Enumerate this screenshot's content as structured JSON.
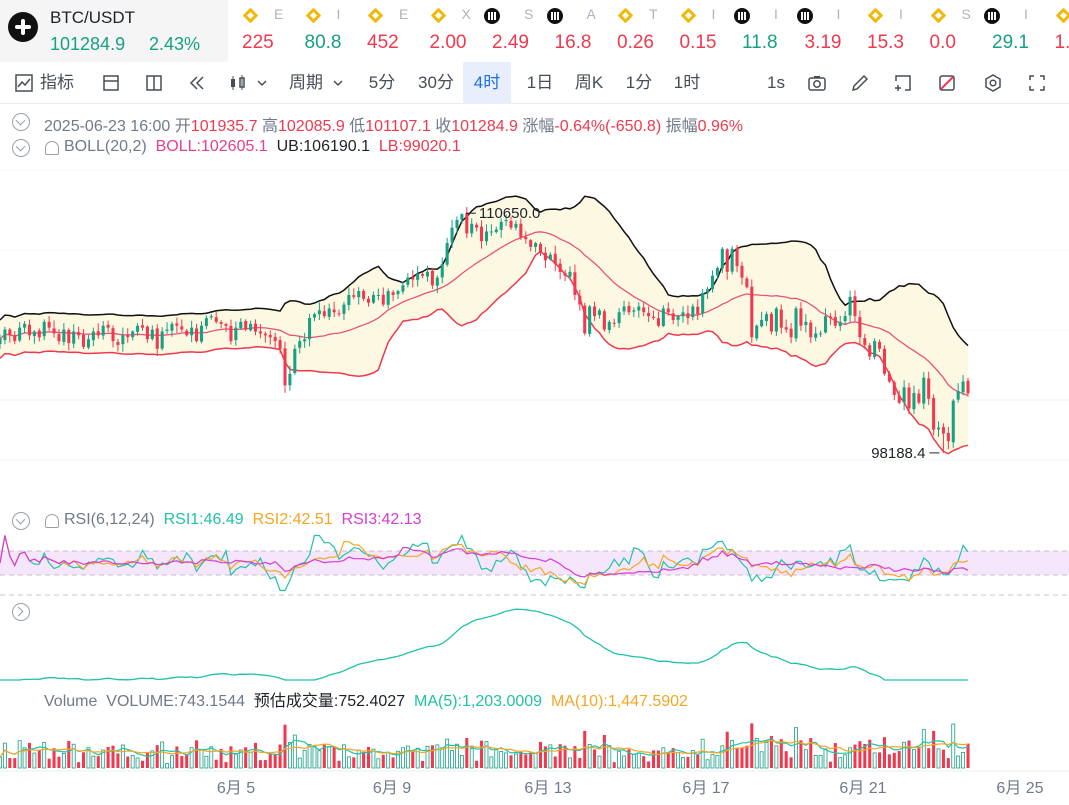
{
  "header": {
    "pair": "BTC/USDT",
    "price": "101284.9",
    "change": "2.43%",
    "tickers": [
      {
        "icon": "binance-icon",
        "sub": "E",
        "value": "225",
        "color": "#f0394e"
      },
      {
        "icon": "binance-icon",
        "sub": "I",
        "value": "80.8",
        "color": "#16a085"
      },
      {
        "icon": "binance-icon",
        "sub": "E",
        "value": "452",
        "color": "#f0394e"
      },
      {
        "icon": "binance-icon",
        "sub": "X",
        "value": "2.00",
        "color": "#f0394e"
      },
      {
        "icon": "okx-icon",
        "sub": "S",
        "value": "2.49",
        "color": "#f0394e"
      },
      {
        "icon": "okx-icon",
        "sub": "A",
        "value": "16.8",
        "color": "#f0394e"
      },
      {
        "icon": "binance-icon",
        "sub": "T",
        "value": "0.26",
        "color": "#f0394e"
      },
      {
        "icon": "binance-icon",
        "sub": "I",
        "value": "0.15",
        "color": "#f0394e"
      },
      {
        "icon": "okx-icon",
        "sub": "I",
        "value": "11.8",
        "color": "#16a085"
      },
      {
        "icon": "okx-icon",
        "sub": "I",
        "value": "3.19",
        "color": "#f0394e"
      },
      {
        "icon": "binance-icon",
        "sub": "I",
        "value": "15.3",
        "color": "#f0394e"
      },
      {
        "icon": "binance-icon",
        "sub": "S",
        "value": "0.0",
        "color": "#f0394e"
      },
      {
        "icon": "okx-icon",
        "sub": "I",
        "value": "29.1",
        "color": "#16a085"
      },
      {
        "icon": "binance-icon",
        "sub": "I",
        "value": "1.",
        "color": "#f0394e"
      }
    ]
  },
  "toolbar": {
    "indicators": "指标",
    "period": "周期",
    "intervals": [
      "5分",
      "30分",
      "4时",
      "1日",
      "周K",
      "1分",
      "1时"
    ],
    "active_interval": "4时",
    "realtime": "1s"
  },
  "ohlc": {
    "date": "2025-06-23 16:00",
    "open_label": "开",
    "open": "101935.7",
    "high_label": "高",
    "high": "102085.9",
    "low_label": "低",
    "low": "101107.1",
    "close_label": "收",
    "close": "101284.9",
    "chg_label": "涨幅",
    "chg": "-0.64%(-650.8)",
    "amp_label": "振幅",
    "amp": "0.96%"
  },
  "boll": {
    "name": "BOLL(20,2)",
    "mid": "BOLL:102605.1",
    "ub": "UB:106190.1",
    "lb": "LB:99020.1"
  },
  "rsi": {
    "name": "RSI(6,12,24)",
    "r1": "RSI1:46.49",
    "r2": "RSI2:42.51",
    "r3": "RSI3:42.13"
  },
  "volume": {
    "name": "Volume",
    "vol": "VOLUME:743.1544",
    "est": "预估成交量:752.4027",
    "ma5": "MA(5):1,203.0009",
    "ma10": "MA(10):1,447.5902"
  },
  "colors": {
    "up": "#16a085",
    "down": "#f0394e",
    "boll_upper": "#111111",
    "boll_mid": "#e8537a",
    "boll_lower": "#f0394e",
    "boll_fill": "#fdf8e1",
    "rsi1": "#20c3a6",
    "rsi2": "#f5a623",
    "rsi3": "#d63cd8"
  },
  "chart_data": {
    "type": "candlestick",
    "interval": "4h",
    "x_tick_labels": [
      "6月 5",
      "6月 9",
      "6月 13",
      "6月 17",
      "6月 21",
      "6月 25"
    ],
    "annotations": {
      "high": "110650.0",
      "low": "98188.4"
    },
    "y_range_price": [
      96000,
      113000
    ],
    "candles_sample": {
      "last": {
        "date": "2025-06-23 16:00",
        "open": 101935.7,
        "high": 102085.9,
        "low": 101107.1,
        "close": 101284.9
      }
    },
    "bollinger_last": {
      "mid": 102605.1,
      "upper": 106190.1,
      "lower": 99020.1
    },
    "rsi_last": {
      "rsi6": 46.49,
      "rsi12": 42.51,
      "rsi24": 42.13
    },
    "volume_last": {
      "volume": 743.1544,
      "estimated": 752.4027,
      "ma5": 1203.0009,
      "ma10": 1447.5902
    },
    "closes": [
      104100,
      104600,
      104300,
      104000,
      104700,
      104900,
      104300,
      104500,
      104200,
      105000,
      104700,
      104400,
      104000,
      104600,
      103900,
      104500,
      104300,
      103700,
      104100,
      104500,
      104300,
      104800,
      104700,
      104000,
      103800,
      104300,
      104200,
      104500,
      104800,
      104700,
      104100,
      104600,
      103600,
      104500,
      104600,
      104900,
      104800,
      104600,
      104300,
      104700,
      104000,
      104800,
      105200,
      105300,
      105000,
      104900,
      104800,
      104000,
      104700,
      105000,
      104600,
      104900,
      104500,
      104400,
      104300,
      104200,
      104000,
      103600,
      101700,
      102300,
      103600,
      104000,
      104100,
      105200,
      105400,
      105600,
      105300,
      105700,
      105500,
      105400,
      105900,
      106400,
      106300,
      106600,
      106200,
      106000,
      106400,
      106400,
      105900,
      106600,
      106400,
      106600,
      106900,
      107300,
      107200,
      107500,
      107400,
      107600,
      106900,
      107300,
      108000,
      109100,
      109900,
      110300,
      110600,
      109600,
      110100,
      109900,
      109200,
      109700,
      109700,
      109800,
      110200,
      110300,
      109900,
      110100,
      109400,
      109300,
      108900,
      109100,
      108600,
      108200,
      108500,
      108000,
      107600,
      107400,
      107600,
      106400,
      105900,
      104400,
      105800,
      105300,
      105600,
      104600,
      105000,
      104900,
      105500,
      105800,
      105500,
      105600,
      105800,
      105500,
      105300,
      105200,
      104800,
      105700,
      105500,
      105100,
      105300,
      105500,
      105200,
      105800,
      105400,
      106500,
      106700,
      107400,
      107800,
      108800,
      107600,
      108800,
      107900,
      107300,
      106800,
      104200,
      104800,
      105100,
      105400,
      104500,
      105700,
      104700,
      104600,
      104200,
      105700,
      104800,
      105000,
      104200,
      104400,
      104400,
      105300,
      105200,
      104800,
      105000,
      105300,
      106300,
      105300,
      104200,
      103800,
      103200,
      104000,
      103600,
      102300,
      101900,
      101200,
      100800,
      101600,
      100500,
      101300,
      100800,
      102100,
      101000,
      99400,
      99500,
      99200,
      98800,
      100900,
      101400,
      101900,
      101300
    ]
  }
}
